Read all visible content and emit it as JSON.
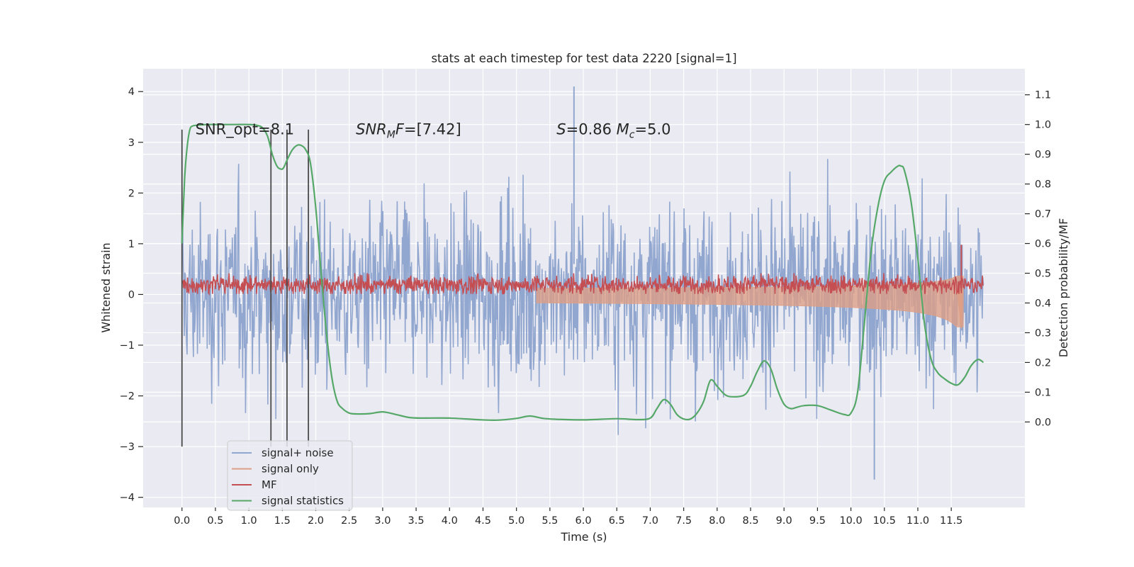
{
  "chart_data": {
    "type": "line",
    "title": "stats at each timestep for test data 2220 [signal=1]",
    "xlabel": "Time (s)",
    "ylabel": "Whitened strain",
    "ylabel_right": "Detection probability/MF",
    "xlim": [
      -0.58,
      12.6
    ],
    "ylim": [
      -4.2,
      4.45
    ],
    "ylim_right": [
      -0.2875,
      1.1875
    ],
    "x_ticks": [
      0,
      0.5,
      1.0,
      1.5,
      2.0,
      2.5,
      3.0,
      3.5,
      4.0,
      4.5,
      5.0,
      5.5,
      6.0,
      6.5,
      7.0,
      7.5,
      8.0,
      8.5,
      9.0,
      9.5,
      10.0,
      10.5,
      11.0,
      11.5
    ],
    "x_tick_labels": [
      "0.0",
      "0.5",
      "1.0",
      "1.5",
      "2.0",
      "2.5",
      "3.0",
      "3.5",
      "4.0",
      "4.5",
      "5.0",
      "5.5",
      "6.0",
      "6.5",
      "7.0",
      "7.5",
      "8.0",
      "8.5",
      "9.0",
      "9.5",
      "10.0",
      "10.5",
      "11.0",
      "11.5"
    ],
    "y_ticks": [
      4,
      3,
      2,
      1,
      0,
      -1,
      -2,
      -3,
      -4
    ],
    "y_tick_labels": [
      "4",
      "3",
      "2",
      "1",
      "0",
      "−1",
      "−2",
      "−3",
      "−4"
    ],
    "y_right_ticks": [
      1.1,
      1.0,
      0.9,
      0.8,
      0.7,
      0.6,
      0.5,
      0.4,
      0.3,
      0.2,
      0.1,
      0.0
    ],
    "y_right_tick_labels": [
      "1.1",
      "1.0",
      "0.9",
      "0.8",
      "0.7",
      "0.6",
      "0.5",
      "0.4",
      "0.3",
      "0.2",
      "0.1",
      "0.0"
    ],
    "grid": true,
    "legend_position": "bottom-left",
    "legend": [
      "signal+ noise",
      "signal only",
      "MF",
      "signal statistics"
    ],
    "colors": {
      "background": "#eaeaf2",
      "grid": "#ffffff",
      "signal_noise": "#92a7cf",
      "signal_only": "#dd9f86",
      "mf": "#c44e52",
      "signal_statistics": "#55a868",
      "vlines": "#4a4a4a"
    },
    "annotations": [
      {
        "x": 0.2,
        "y": 3.16,
        "parts": [
          {
            "t": "SNR_opt=8.1",
            "i": false
          }
        ]
      },
      {
        "x": 2.6,
        "y": 3.16,
        "parts": [
          {
            "t": "SNR",
            "i": true
          },
          {
            "t": "M",
            "i": true,
            "sub": true
          },
          {
            "t": "F",
            "i": true
          },
          {
            "t": "=[7.42]",
            "i": false
          }
        ]
      },
      {
        "x": 5.6,
        "y": 3.16,
        "parts": [
          {
            "t": "S",
            "i": true
          },
          {
            "t": "=0.86   ",
            "i": false
          },
          {
            "t": "M",
            "i": true
          },
          {
            "t": "c",
            "i": true,
            "sub": true
          },
          {
            "t": "=5.0",
            "i": false
          }
        ]
      }
    ],
    "vertical_lines": [
      {
        "x": 0.0,
        "y0": -3.0,
        "y1": 3.25
      },
      {
        "x": 1.33,
        "y0": -3.0,
        "y1": 3.25
      },
      {
        "x": 1.57,
        "y0": -3.0,
        "y1": 3.25
      },
      {
        "x": 1.89,
        "y0": -3.0,
        "y1": 3.25
      }
    ],
    "series": [
      {
        "name": "signal+ noise",
        "kind": "noise-band",
        "x_range": [
          0,
          11.98
        ],
        "typical_range": [
          -2.0,
          2.0
        ],
        "extremes": [
          -3.65,
          4.1
        ]
      },
      {
        "name": "signal only",
        "kind": "chirp",
        "x_range": [
          5.3,
          11.68
        ],
        "peak": {
          "x": 11.65,
          "y_min": -0.68,
          "y_max": 0.98
        }
      },
      {
        "name": "MF",
        "kind": "band",
        "x_range": [
          0,
          11.98
        ],
        "typical_range": [
          0.02,
          0.35
        ],
        "peak": {
          "x": 11.65,
          "y": 0.98
        }
      },
      {
        "name": "signal statistics",
        "kind": "line",
        "axis": "right",
        "x": [
          0.0,
          0.04,
          0.08,
          0.12,
          0.16,
          0.2,
          0.3,
          0.4,
          0.6,
          0.8,
          1.0,
          1.1,
          1.2,
          1.28,
          1.35,
          1.42,
          1.48,
          1.52,
          1.58,
          1.65,
          1.72,
          1.78,
          1.85,
          1.92,
          2.0,
          2.08,
          2.16,
          2.24,
          2.32,
          2.4,
          2.5,
          2.6,
          2.8,
          3.0,
          3.2,
          3.4,
          3.6,
          4.0,
          4.4,
          4.7,
          5.0,
          5.2,
          5.4,
          5.6,
          6.0,
          6.5,
          6.8,
          7.0,
          7.1,
          7.2,
          7.3,
          7.4,
          7.5,
          7.6,
          7.7,
          7.8,
          7.9,
          8.0,
          8.1,
          8.2,
          8.4,
          8.5,
          8.6,
          8.7,
          8.8,
          8.9,
          9.0,
          9.1,
          9.2,
          9.3,
          9.5,
          9.7,
          9.9,
          10.0,
          10.1,
          10.2,
          10.3,
          10.4,
          10.5,
          10.6,
          10.7,
          10.75,
          10.8,
          10.9,
          11.0,
          11.1,
          11.2,
          11.3,
          11.4,
          11.5,
          11.6,
          11.7,
          11.8,
          11.9,
          11.98
        ],
        "y": [
          0.6,
          0.82,
          0.93,
          0.985,
          0.995,
          0.997,
          0.999,
          1.0,
          1.0,
          1.0,
          1.0,
          0.998,
          0.99,
          0.96,
          0.9,
          0.86,
          0.85,
          0.855,
          0.885,
          0.915,
          0.93,
          0.93,
          0.915,
          0.87,
          0.72,
          0.5,
          0.3,
          0.15,
          0.07,
          0.045,
          0.03,
          0.027,
          0.028,
          0.034,
          0.025,
          0.015,
          0.013,
          0.013,
          0.008,
          0.006,
          0.012,
          0.02,
          0.012,
          0.009,
          0.007,
          0.011,
          0.008,
          0.013,
          0.045,
          0.075,
          0.06,
          0.025,
          0.01,
          0.01,
          0.03,
          0.07,
          0.14,
          0.12,
          0.095,
          0.085,
          0.09,
          0.12,
          0.17,
          0.205,
          0.18,
          0.11,
          0.06,
          0.045,
          0.05,
          0.055,
          0.055,
          0.04,
          0.025,
          0.03,
          0.1,
          0.33,
          0.57,
          0.72,
          0.81,
          0.84,
          0.86,
          0.86,
          0.845,
          0.74,
          0.55,
          0.33,
          0.21,
          0.165,
          0.145,
          0.13,
          0.125,
          0.15,
          0.19,
          0.21,
          0.2
        ]
      }
    ]
  }
}
